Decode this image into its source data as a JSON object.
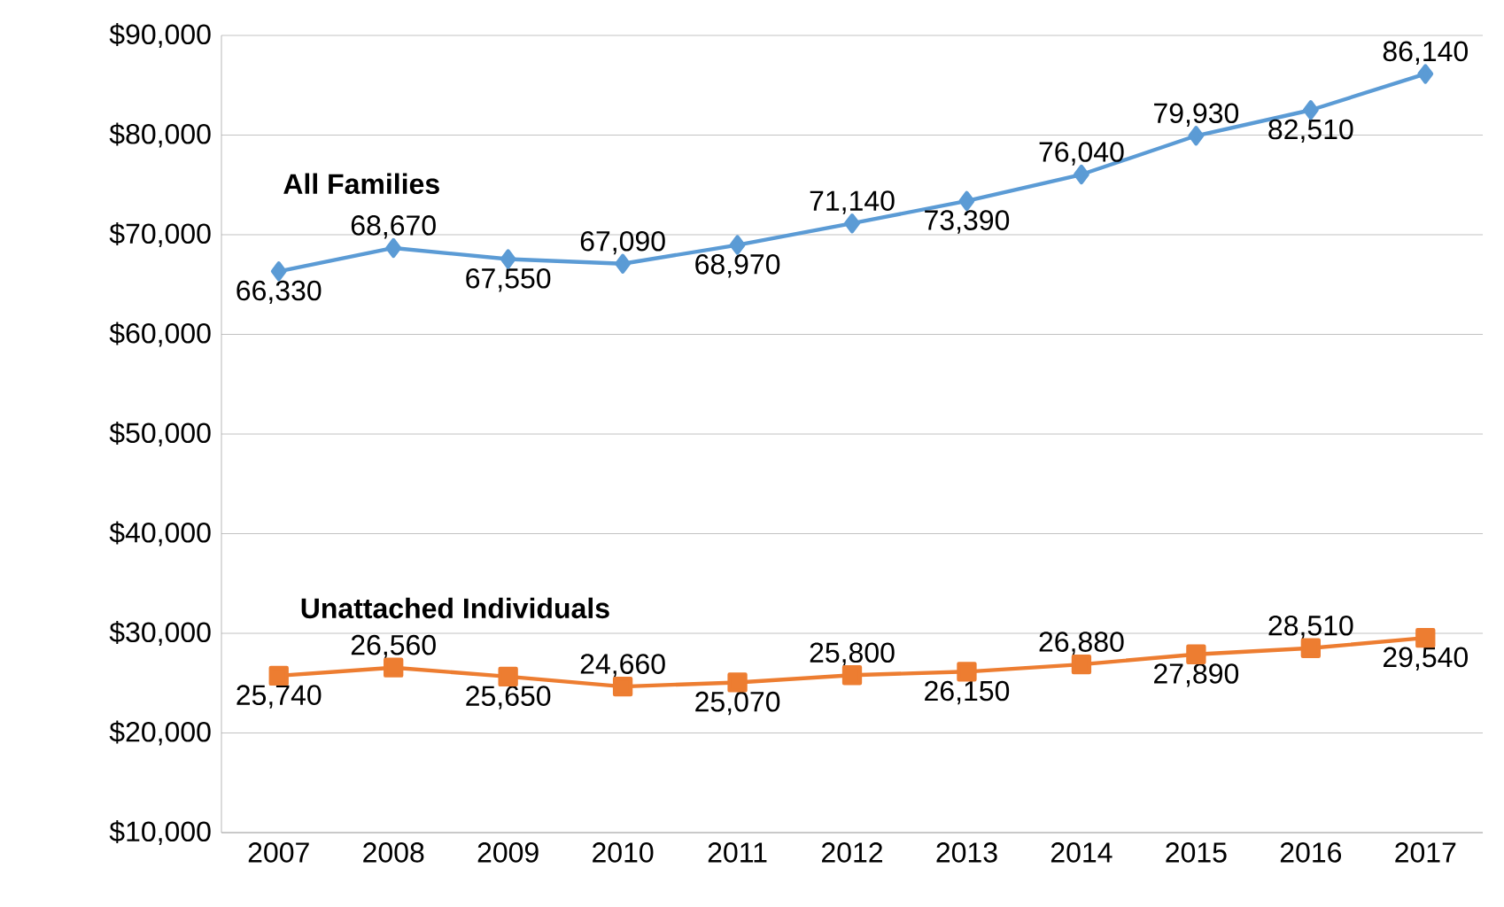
{
  "chart_data": {
    "type": "line",
    "categories": [
      "2007",
      "2008",
      "2009",
      "2010",
      "2011",
      "2012",
      "2013",
      "2014",
      "2015",
      "2016",
      "2017"
    ],
    "series": [
      {
        "name": "All Families",
        "color": "#5b9bd5",
        "marker": "diamond",
        "values": [
          66330,
          68670,
          67550,
          67090,
          68970,
          71140,
          73390,
          76040,
          79930,
          82510,
          86140
        ],
        "value_labels": [
          "66,330",
          "68,670",
          "67,550",
          "67,090",
          "68,970",
          "71,140",
          "73,390",
          "76,040",
          "79,930",
          "82,510",
          "86,140"
        ]
      },
      {
        "name": "Unattached Individuals",
        "color": "#ed7d31",
        "marker": "square",
        "values": [
          25740,
          26560,
          25650,
          24660,
          25070,
          25800,
          26150,
          26880,
          27890,
          28510,
          29540
        ],
        "value_labels": [
          "25,740",
          "26,560",
          "25,650",
          "24,660",
          "25,070",
          "25,800",
          "26,150",
          "26,880",
          "27,890",
          "28,510",
          "29,540"
        ]
      }
    ],
    "ylim": [
      10000,
      90000
    ],
    "yticks": [
      {
        "value": 10000,
        "label": "$10,000"
      },
      {
        "value": 20000,
        "label": "$20,000"
      },
      {
        "value": 30000,
        "label": "$30,000"
      },
      {
        "value": 40000,
        "label": "$40,000"
      },
      {
        "value": 50000,
        "label": "$50,000"
      },
      {
        "value": 60000,
        "label": "$60,000"
      },
      {
        "value": 70000,
        "label": "$70,000"
      },
      {
        "value": 80000,
        "label": "$80,000"
      },
      {
        "value": 90000,
        "label": "$90,000"
      }
    ],
    "grid": "y",
    "line_style": "solid"
  }
}
